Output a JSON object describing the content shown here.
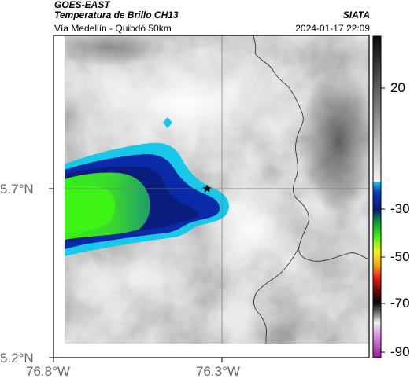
{
  "header": {
    "satellite": "GOES-EAST",
    "product": "Temperatura de Brillo CH13",
    "route": "Vía Medellín - Quibdó 50km",
    "org": "SIATA",
    "datetime": "2024-01-17 22:09"
  },
  "axes": {
    "lat_labels": [
      "5.7°N",
      "5.2°N"
    ],
    "lon_labels": [
      "76.8°W",
      "76.3°W"
    ]
  },
  "colorbar": {
    "tick_labels": [
      "20",
      "-30",
      "-50",
      "-70",
      "-90"
    ]
  },
  "colors": {
    "cloud_core": "#34e61a",
    "cloud_mid": "#0a1f9e",
    "cloud_edge": "#17c8e8",
    "frame": "#000000"
  },
  "icons": {
    "marker": "star-icon"
  }
}
